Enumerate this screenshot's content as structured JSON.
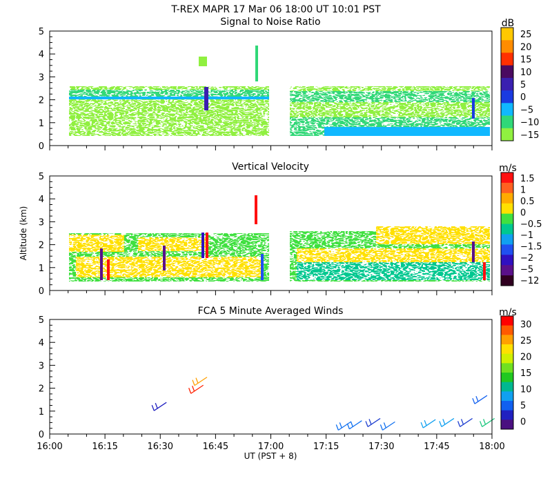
{
  "header": {
    "title": "T-REX   MAPR 17 Mar 06   18:00 UT   10:01   PST"
  },
  "chart_data": [
    {
      "type": "heatmap",
      "title": "Signal to Noise Ratio",
      "ylabel": "",
      "ylim": [
        0,
        5
      ],
      "yticks": [
        "0",
        "1",
        "2",
        "3",
        "4",
        "5"
      ],
      "xlim": [
        "16:00",
        "18:00"
      ],
      "colorbar": {
        "unit": "dB",
        "labels": [
          "25",
          "20",
          "15",
          "10",
          "5",
          "0",
          "−5",
          "−10",
          "−15"
        ],
        "colors": [
          "#ffc800",
          "#ff8c00",
          "#ff3000",
          "#4a0a60",
          "#3a20b0",
          "#1a3ae0",
          "#10b8ff",
          "#30d878",
          "#90f040"
        ]
      }
    },
    {
      "type": "heatmap",
      "title": "Vertical Velocity",
      "ylabel": "Altitude (km)",
      "ylim": [
        0,
        5
      ],
      "yticks": [
        "0",
        "1",
        "2",
        "3",
        "4",
        "5"
      ],
      "xlim": [
        "16:00",
        "18:00"
      ],
      "colorbar": {
        "unit": "m/s",
        "labels": [
          "1.5",
          "1",
          "0.5",
          "0",
          "−0.5",
          "−1",
          "−1.5",
          "−2",
          "−5",
          "−12"
        ],
        "colors": [
          "#ff1010",
          "#ff6020",
          "#ffaa00",
          "#ffe000",
          "#40e040",
          "#00c890",
          "#10a0f0",
          "#2050f0",
          "#3010c0",
          "#5a108a",
          "#300020"
        ]
      }
    },
    {
      "type": "scatter",
      "title": "FCA 5 Minute Averaged Winds",
      "xlabel": "UT  (PST + 8)",
      "ylim": [
        0,
        5
      ],
      "yticks": [
        "0",
        "1",
        "2",
        "3",
        "4",
        "5"
      ],
      "xticks": [
        "16:00",
        "16:15",
        "16:30",
        "16:45",
        "17:00",
        "17:15",
        "17:30",
        "17:45",
        "18:00"
      ],
      "colorbar": {
        "unit": "m/s",
        "labels": [
          "30",
          "25",
          "20",
          "15",
          "10",
          "5",
          "0"
        ],
        "colors": [
          "#ff0000",
          "#ff5a00",
          "#ffa000",
          "#ffe000",
          "#d0f000",
          "#70e020",
          "#20c820",
          "#00b890",
          "#10a0f0",
          "#1060f0",
          "#2020c0",
          "#4a1080"
        ]
      },
      "barbs": [
        {
          "t": 30,
          "z": 1.2,
          "color": "#2020c0"
        },
        {
          "t": 40,
          "z": 1.95,
          "color": "#ff2000"
        },
        {
          "t": 41,
          "z": 2.3,
          "color": "#ffa000"
        },
        {
          "t": 80,
          "z": 0.35,
          "color": "#1070f0"
        },
        {
          "t": 83,
          "z": 0.4,
          "color": "#1070f0"
        },
        {
          "t": 88,
          "z": 0.5,
          "color": "#2040d0"
        },
        {
          "t": 92,
          "z": 0.35,
          "color": "#1070f0"
        },
        {
          "t": 103,
          "z": 0.45,
          "color": "#10a0f0"
        },
        {
          "t": 108,
          "z": 0.5,
          "color": "#10a0f0"
        },
        {
          "t": 113,
          "z": 0.5,
          "color": "#2040d0"
        },
        {
          "t": 117,
          "z": 1.5,
          "color": "#1060f0"
        },
        {
          "t": 119,
          "z": 0.5,
          "color": "#20c880"
        }
      ]
    }
  ]
}
